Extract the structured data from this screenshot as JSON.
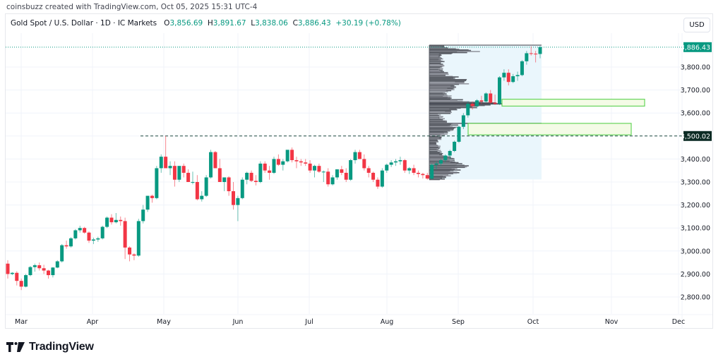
{
  "credit": "coinsbuzz created with TradingView.com, Oct 05, 2025 15:31 UTC-4",
  "legend": {
    "symbol": "Gold Spot / U.S. Dollar · 1D · IC Markets",
    "o_label": "O",
    "o": "3,856.69",
    "h_label": "H",
    "h": "3,891.67",
    "l_label": "L",
    "l": "3,838.06",
    "c_label": "C",
    "c": "3,886.43",
    "change": "+30.19 (+0.78%)"
  },
  "currency_button": "USD",
  "price_axis": {
    "ticks": [
      "3,800.00",
      "3,700.00",
      "3,600.00",
      "3,400.00",
      "3,300.00",
      "3,200.00",
      "3,100.00",
      "3,000.00",
      "2,900.00",
      "2,800.00"
    ],
    "last_price_label": "3,886.43",
    "line_label": "3,500.02"
  },
  "time_axis": {
    "ticks": [
      "Mar",
      "Apr",
      "May",
      "Jun",
      "Jul",
      "Aug",
      "Sep",
      "Oct",
      "Nov",
      "Dec"
    ]
  },
  "brand": "TradingView",
  "colors": {
    "up": "#089981",
    "down": "#f23645",
    "last_price": "#089981",
    "hline_label_bg": "#0b2b24",
    "zone_fill": "#f4fbe6",
    "zone_border": "#66d45a",
    "vp_bar": "#5d6068",
    "vp_bg": "#eaf6fc"
  },
  "chart_data": {
    "type": "candlestick",
    "title": "Gold Spot / U.S. Dollar · 1D · IC Markets",
    "xlabel": "",
    "ylabel": "USD",
    "ylim": [
      2760,
      3940
    ],
    "x_ticks": [
      "Mar",
      "Apr",
      "May",
      "Jun",
      "Jul",
      "Aug",
      "Sep",
      "Oct",
      "Nov",
      "Dec"
    ],
    "y_ticks": [
      2800,
      2900,
      3000,
      3100,
      3200,
      3300,
      3400,
      3500,
      3600,
      3700,
      3800
    ],
    "last": {
      "open": 3856.69,
      "high": 3891.67,
      "low": 3838.06,
      "close": 3886.43,
      "change": 30.19,
      "change_pct": 0.78
    },
    "horizontal_line": {
      "price": 3500.02,
      "style": "dashed",
      "from": "Apr 22"
    },
    "zones": [
      {
        "name": "upper-demand-zone",
        "top": 3660,
        "bottom": 3630,
        "from": "Sep 24",
        "to": "Nov 13"
      },
      {
        "name": "lower-demand-zone",
        "top": 3555,
        "bottom": 3505,
        "from": "Sep 3",
        "to": "Nov 7"
      }
    ],
    "volume_profile": {
      "from": "Aug 20",
      "to": "Oct 05",
      "price_low": 3311,
      "price_high": 3895,
      "poc": 3640
    },
    "ohlc": [
      [
        2945,
        2960,
        2880,
        2900
      ],
      [
        2900,
        2908,
        2895,
        2905
      ],
      [
        2905,
        2912,
        2850,
        2870
      ],
      [
        2870,
        2880,
        2830,
        2845
      ],
      [
        2845,
        2900,
        2842,
        2895
      ],
      [
        2895,
        2935,
        2890,
        2930
      ],
      [
        2930,
        2945,
        2910,
        2938
      ],
      [
        2938,
        2950,
        2915,
        2925
      ],
      [
        2925,
        2940,
        2900,
        2915
      ],
      [
        2915,
        2918,
        2880,
        2895
      ],
      [
        2895,
        2930,
        2885,
        2928
      ],
      [
        2928,
        2960,
        2925,
        2955
      ],
      [
        2955,
        3030,
        2950,
        3025
      ],
      [
        3025,
        3045,
        3010,
        3020
      ],
      [
        3020,
        3060,
        3015,
        3055
      ],
      [
        3055,
        3095,
        3050,
        3090
      ],
      [
        3090,
        3110,
        3080,
        3100
      ],
      [
        3100,
        3105,
        3075,
        3080
      ],
      [
        3080,
        3085,
        3035,
        3045
      ],
      [
        3045,
        3058,
        3030,
        3050
      ],
      [
        3050,
        3062,
        3040,
        3055
      ],
      [
        3055,
        3110,
        3050,
        3105
      ],
      [
        3105,
        3150,
        3100,
        3145
      ],
      [
        3145,
        3160,
        3115,
        3125
      ],
      [
        3125,
        3165,
        3120,
        3135
      ],
      [
        3135,
        3150,
        3110,
        3130
      ],
      [
        3130,
        3145,
        2965,
        3015
      ],
      [
        3015,
        3020,
        2955,
        2985
      ],
      [
        2985,
        2990,
        2960,
        2980
      ],
      [
        2980,
        3140,
        2975,
        3130
      ],
      [
        3130,
        3200,
        3120,
        3180
      ],
      [
        3180,
        3220,
        3170,
        3240
      ],
      [
        3240,
        3245,
        3210,
        3230
      ],
      [
        3230,
        3370,
        3225,
        3360
      ],
      [
        3360,
        3420,
        3340,
        3410
      ],
      [
        3410,
        3500,
        3370,
        3360
      ],
      [
        3360,
        3390,
        3330,
        3370
      ],
      [
        3370,
        3390,
        3280,
        3310
      ],
      [
        3310,
        3360,
        3300,
        3370
      ],
      [
        3370,
        3380,
        3320,
        3340
      ],
      [
        3340,
        3355,
        3300,
        3300
      ],
      [
        3300,
        3345,
        3290,
        3300
      ],
      [
        3300,
        3330,
        3220,
        3225
      ],
      [
        3225,
        3260,
        3215,
        3240
      ],
      [
        3240,
        3330,
        3235,
        3320
      ],
      [
        3320,
        3440,
        3315,
        3430
      ],
      [
        3430,
        3435,
        3370,
        3360
      ],
      [
        3360,
        3400,
        3300,
        3300
      ],
      [
        3300,
        3320,
        3260,
        3320
      ],
      [
        3320,
        3325,
        3240,
        3260
      ],
      [
        3260,
        3300,
        3180,
        3200
      ],
      [
        3200,
        3240,
        3130,
        3230
      ],
      [
        3230,
        3320,
        3225,
        3310
      ],
      [
        3310,
        3345,
        3290,
        3340
      ],
      [
        3340,
        3350,
        3300,
        3305
      ],
      [
        3305,
        3330,
        3285,
        3300
      ],
      [
        3300,
        3390,
        3295,
        3380
      ],
      [
        3380,
        3390,
        3340,
        3350
      ],
      [
        3350,
        3370,
        3310,
        3340
      ],
      [
        3340,
        3410,
        3335,
        3400
      ],
      [
        3400,
        3420,
        3370,
        3375
      ],
      [
        3375,
        3400,
        3350,
        3390
      ],
      [
        3390,
        3430,
        3385,
        3440
      ],
      [
        3440,
        3450,
        3385,
        3395
      ],
      [
        3395,
        3410,
        3360,
        3390
      ],
      [
        3390,
        3400,
        3370,
        3385
      ],
      [
        3385,
        3400,
        3370,
        3380
      ],
      [
        3380,
        3395,
        3340,
        3350
      ],
      [
        3350,
        3375,
        3320,
        3370
      ],
      [
        3370,
        3380,
        3340,
        3345
      ],
      [
        3345,
        3350,
        3300,
        3345
      ],
      [
        3345,
        3360,
        3280,
        3290
      ],
      [
        3290,
        3330,
        3285,
        3320
      ],
      [
        3320,
        3350,
        3310,
        3355
      ],
      [
        3355,
        3370,
        3330,
        3340
      ],
      [
        3340,
        3360,
        3300,
        3310
      ],
      [
        3310,
        3400,
        3305,
        3395
      ],
      [
        3395,
        3440,
        3380,
        3430
      ],
      [
        3430,
        3440,
        3400,
        3400
      ],
      [
        3400,
        3420,
        3350,
        3360
      ],
      [
        3360,
        3370,
        3320,
        3340
      ],
      [
        3340,
        3345,
        3300,
        3310
      ],
      [
        3310,
        3320,
        3270,
        3280
      ],
      [
        3280,
        3360,
        3275,
        3350
      ],
      [
        3350,
        3380,
        3340,
        3375
      ],
      [
        3375,
        3395,
        3365,
        3385
      ],
      [
        3385,
        3400,
        3370,
        3390
      ],
      [
        3390,
        3410,
        3375,
        3395
      ],
      [
        3395,
        3400,
        3340,
        3350
      ],
      [
        3350,
        3365,
        3335,
        3360
      ],
      [
        3360,
        3375,
        3330,
        3340
      ],
      [
        3340,
        3350,
        3320,
        3335
      ],
      [
        3335,
        3340,
        3315,
        3330
      ],
      [
        3330,
        3340,
        3310,
        3315
      ],
      [
        3315,
        3380,
        3310,
        3375
      ],
      [
        3375,
        3390,
        3355,
        3380
      ],
      [
        3380,
        3400,
        3370,
        3395
      ],
      [
        3395,
        3420,
        3385,
        3415
      ],
      [
        3415,
        3440,
        3400,
        3435
      ],
      [
        3435,
        3480,
        3430,
        3475
      ],
      [
        3475,
        3545,
        3470,
        3540
      ],
      [
        3540,
        3600,
        3530,
        3590
      ],
      [
        3590,
        3650,
        3580,
        3640
      ],
      [
        3640,
        3650,
        3615,
        3630
      ],
      [
        3630,
        3660,
        3620,
        3655
      ],
      [
        3655,
        3675,
        3640,
        3650
      ],
      [
        3650,
        3690,
        3645,
        3685
      ],
      [
        3685,
        3700,
        3640,
        3645
      ],
      [
        3645,
        3680,
        3635,
        3640
      ],
      [
        3640,
        3760,
        3635,
        3755
      ],
      [
        3755,
        3790,
        3740,
        3775
      ],
      [
        3775,
        3790,
        3720,
        3735
      ],
      [
        3735,
        3770,
        3730,
        3760
      ],
      [
        3760,
        3780,
        3740,
        3765
      ],
      [
        3765,
        3830,
        3760,
        3825
      ],
      [
        3825,
        3870,
        3810,
        3860
      ],
      [
        3860,
        3890,
        3850,
        3858
      ],
      [
        3858,
        3870,
        3820,
        3856
      ],
      [
        3856.69,
        3891.67,
        3838.06,
        3886.43
      ]
    ]
  }
}
